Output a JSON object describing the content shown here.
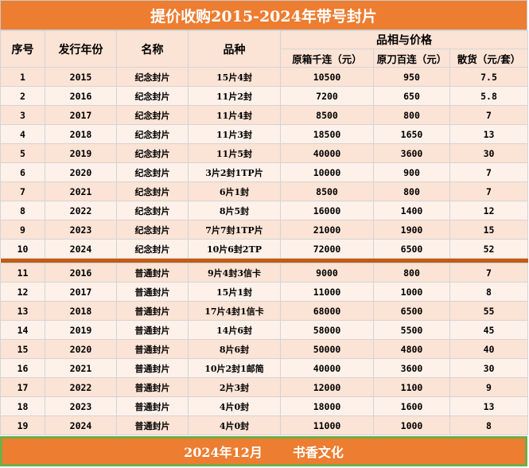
{
  "title": "提价收购2015-2024年带号封片",
  "headers": {
    "seq": "序号",
    "year": "发行年份",
    "name": "名称",
    "variety": "品种",
    "group": "品相与价格",
    "col_box": "原箱千连（元）",
    "col_knife": "原刀百连（元）",
    "col_loose": "散货（元/套）"
  },
  "rows_commemorative": [
    {
      "seq": "1",
      "year": "2015",
      "name": "纪念封片",
      "variety": "15片4封",
      "box": "10500",
      "knife": "950",
      "loose": "7.5"
    },
    {
      "seq": "2",
      "year": "2016",
      "name": "纪念封片",
      "variety": "11片2封",
      "box": "7200",
      "knife": "650",
      "loose": "5.8"
    },
    {
      "seq": "3",
      "year": "2017",
      "name": "纪念封片",
      "variety": "11片4封",
      "box": "8500",
      "knife": "800",
      "loose": "7"
    },
    {
      "seq": "4",
      "year": "2018",
      "name": "纪念封片",
      "variety": "11片3封",
      "box": "18500",
      "knife": "1650",
      "loose": "13"
    },
    {
      "seq": "5",
      "year": "2019",
      "name": "纪念封片",
      "variety": "11片5封",
      "box": "40000",
      "knife": "3600",
      "loose": "30"
    },
    {
      "seq": "6",
      "year": "2020",
      "name": "纪念封片",
      "variety": "3片2封1TP片",
      "box": "10000",
      "knife": "900",
      "loose": "7"
    },
    {
      "seq": "7",
      "year": "2021",
      "name": "纪念封片",
      "variety": "6片1封",
      "box": "8500",
      "knife": "800",
      "loose": "7"
    },
    {
      "seq": "8",
      "year": "2022",
      "name": "纪念封片",
      "variety": "8片5封",
      "box": "16000",
      "knife": "1400",
      "loose": "12"
    },
    {
      "seq": "9",
      "year": "2023",
      "name": "纪念封片",
      "variety": "7片7封1TP片",
      "box": "21000",
      "knife": "1900",
      "loose": "15"
    },
    {
      "seq": "10",
      "year": "2024",
      "name": "纪念封片",
      "variety": "10片6封2TP",
      "box": "72000",
      "knife": "6500",
      "loose": "52"
    }
  ],
  "rows_ordinary": [
    {
      "seq": "11",
      "year": "2016",
      "name": "普通封片",
      "variety": "9片4封3信卡",
      "box": "9000",
      "knife": "800",
      "loose": "7"
    },
    {
      "seq": "12",
      "year": "2017",
      "name": "普通封片",
      "variety": "15片1封",
      "box": "11000",
      "knife": "1000",
      "loose": "8"
    },
    {
      "seq": "13",
      "year": "2018",
      "name": "普通封片",
      "variety": "17片4封1信卡",
      "box": "68000",
      "knife": "6500",
      "loose": "55"
    },
    {
      "seq": "14",
      "year": "2019",
      "name": "普通封片",
      "variety": "14片6封",
      "box": "58000",
      "knife": "5500",
      "loose": "45"
    },
    {
      "seq": "15",
      "year": "2020",
      "name": "普通封片",
      "variety": "8片6封",
      "box": "50000",
      "knife": "4800",
      "loose": "40"
    },
    {
      "seq": "16",
      "year": "2021",
      "name": "普通封片",
      "variety": "10片2封1邮简",
      "box": "40000",
      "knife": "3600",
      "loose": "30"
    },
    {
      "seq": "17",
      "year": "2022",
      "name": "普通封片",
      "variety": "2片3封",
      "box": "12000",
      "knife": "1100",
      "loose": "9"
    },
    {
      "seq": "18",
      "year": "2023",
      "name": "普通封片",
      "variety": "4片0封",
      "box": "18000",
      "knife": "1600",
      "loose": "13"
    },
    {
      "seq": "19",
      "year": "2024",
      "name": "普通封片",
      "variety": "4片0封",
      "box": "11000",
      "knife": "1000",
      "loose": "8"
    }
  ],
  "footer": {
    "date": "2024年12月",
    "brand": "书香文化"
  },
  "colors": {
    "accent": "#ed7d31",
    "row_fill": "#fbe3d5",
    "divider": "#c55a11",
    "footer_border": "#70ad47"
  }
}
